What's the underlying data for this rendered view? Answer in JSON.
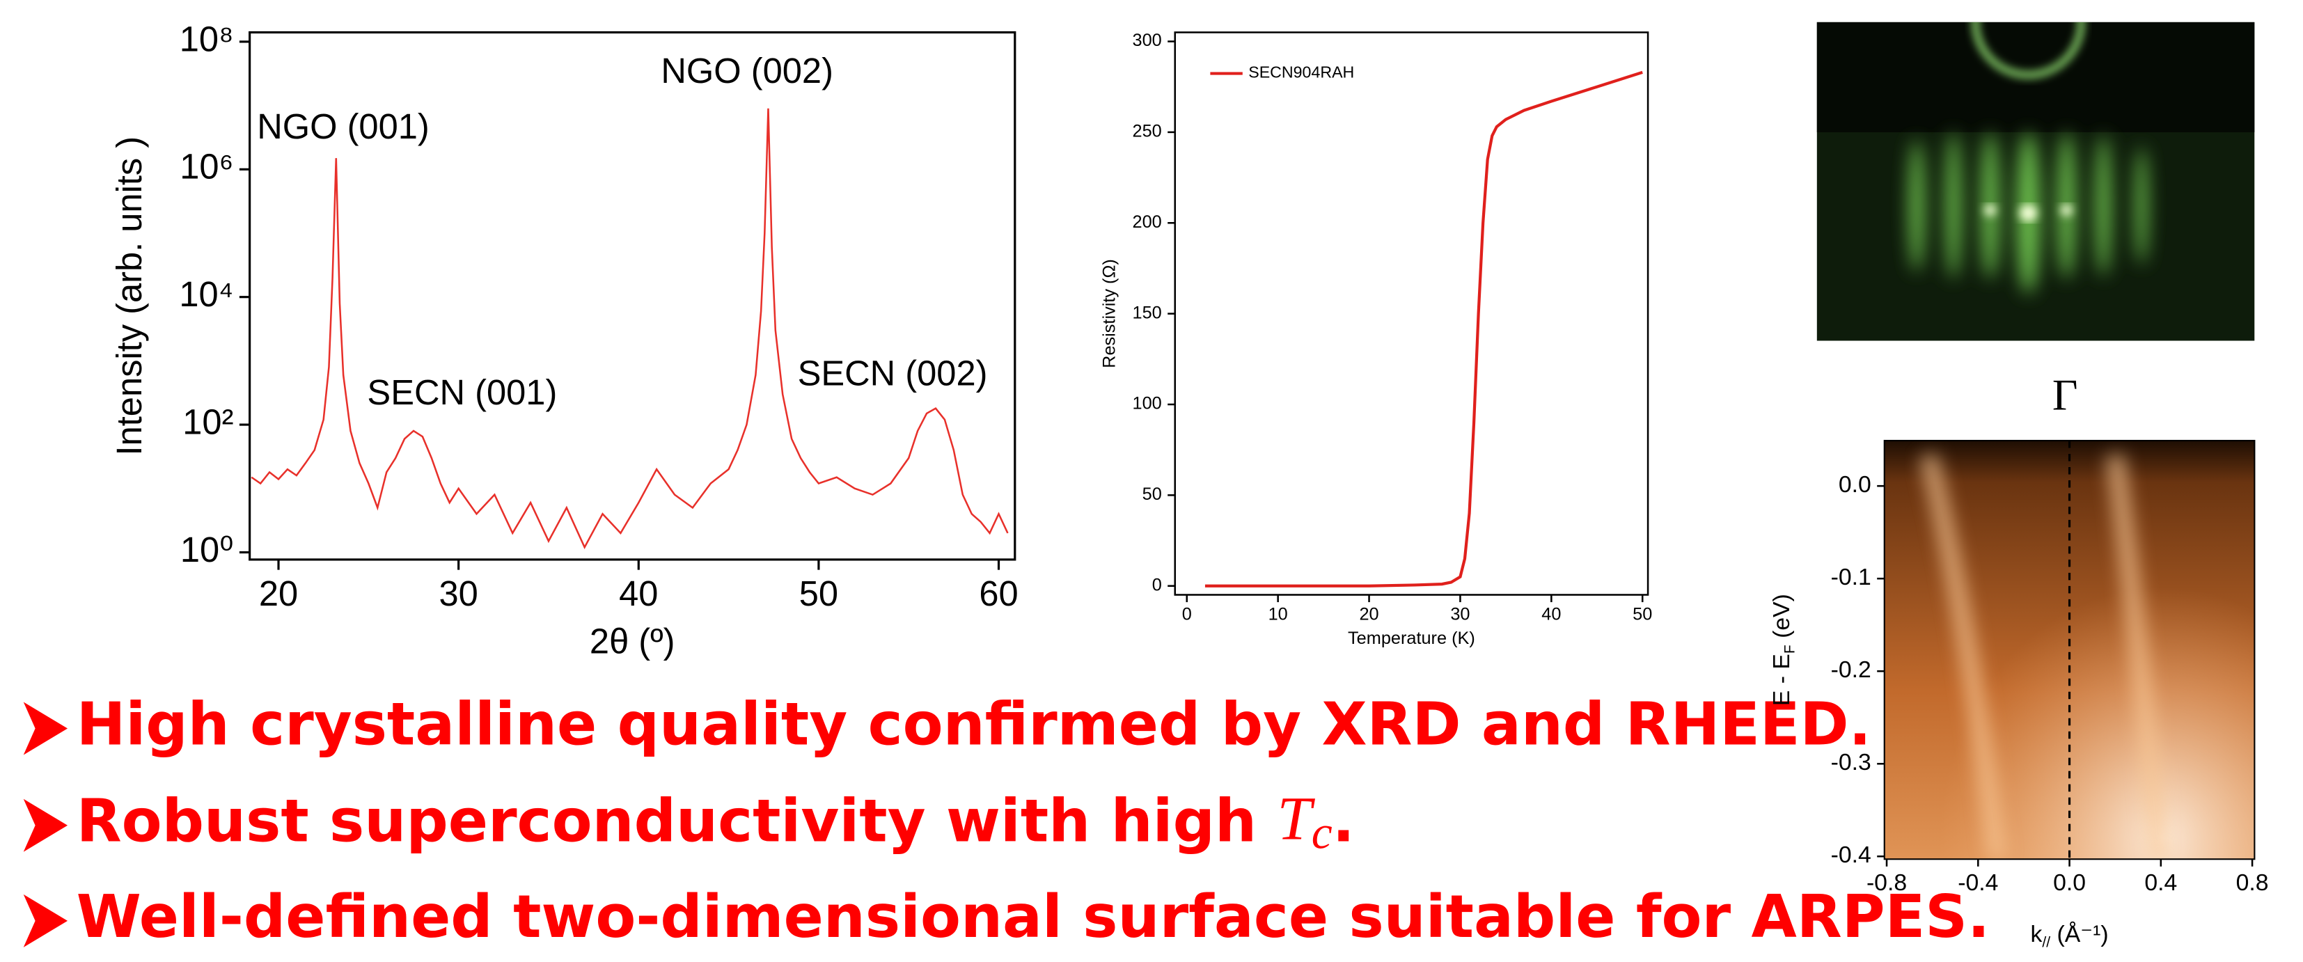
{
  "chart_data": [
    {
      "type": "line",
      "log_y": true,
      "color": "#e8302a",
      "x_label": "2θ (º)",
      "y_label": "Intensity (arb. units )",
      "annotations": [
        "NGO (001)",
        "SECN (001)",
        "NGO (002)",
        "SECN (002)"
      ],
      "x": [
        18.5,
        19,
        19.5,
        20,
        20.5,
        21,
        21.5,
        22,
        22.5,
        22.8,
        23,
        23.2,
        23.4,
        23.6,
        24,
        24.5,
        25,
        25.5,
        26,
        26.5,
        27,
        27.5,
        28,
        28.5,
        29,
        29.5,
        30,
        31,
        32,
        33,
        34,
        35,
        36,
        37,
        38,
        39,
        40,
        41,
        42,
        43,
        44,
        45,
        45.5,
        46,
        46.5,
        46.8,
        47,
        47.2,
        47.4,
        47.6,
        48,
        48.5,
        49,
        49.5,
        50,
        51,
        52,
        53,
        54,
        55,
        55.5,
        56,
        56.5,
        57,
        57.5,
        58,
        58.5,
        59,
        59.5,
        60,
        60.5
      ],
      "values": [
        15,
        12,
        18,
        14,
        20,
        16,
        25,
        40,
        120,
        800,
        20000,
        1500000,
        8000,
        600,
        80,
        25,
        12,
        5,
        18,
        30,
        60,
        80,
        65,
        30,
        12,
        6,
        10,
        4,
        8,
        2,
        6,
        1.5,
        5,
        1.2,
        4,
        2,
        6,
        20,
        8,
        5,
        12,
        20,
        40,
        100,
        600,
        6000,
        100000,
        9000000,
        60000,
        3000,
        300,
        60,
        30,
        18,
        12,
        15,
        10,
        8,
        12,
        30,
        80,
        150,
        180,
        120,
        40,
        8,
        4,
        3,
        2,
        4,
        2
      ],
      "xlim": [
        18.4,
        60.9
      ],
      "xticks": [
        20,
        30,
        40,
        50,
        60
      ],
      "ylim": [
        0.77,
        140000000
      ],
      "yticks": [
        {
          "value": 1,
          "label": "10⁰"
        },
        {
          "value": 100,
          "label": "10²"
        },
        {
          "value": 10000,
          "label": "10⁴"
        },
        {
          "value": 1000000,
          "label": "10⁶"
        },
        {
          "value": 100000000,
          "label": "10⁸"
        }
      ]
    },
    {
      "type": "line",
      "log_y": false,
      "color": "#e0201c",
      "x_label": "Temperature (K)",
      "y_label": "Resistivity (Ω)",
      "legend": "top-left",
      "series_name": "SECN904RAH",
      "x": [
        2,
        10,
        20,
        25,
        28,
        29,
        30,
        30.5,
        31,
        31.5,
        32,
        32.5,
        33,
        33.5,
        34,
        35,
        37,
        40,
        45,
        50
      ],
      "values": [
        0,
        0,
        0,
        0.5,
        1,
        2,
        5,
        15,
        40,
        90,
        150,
        200,
        235,
        248,
        253,
        257,
        262,
        267,
        275,
        283
      ],
      "xlim": [
        -1.3,
        50.6
      ],
      "xticks": [
        0,
        10,
        20,
        30,
        40,
        50
      ],
      "ylim": [
        -4.9,
        305
      ],
      "yticks": [
        0,
        50,
        100,
        150,
        200,
        250,
        300
      ]
    },
    {
      "type": "image",
      "title": "Γ",
      "x_label": "k",
      "x_label_sub": "//",
      "x_label_unit": " (Å⁻¹)",
      "y_label": "E - E",
      "y_label_sub": "F",
      "y_label_unit": " (eV)",
      "xlim": [
        -0.81,
        0.81
      ],
      "xticks": [
        -0.8,
        -0.4,
        {
          "value": 0,
          "label": "0.0"
        },
        0.4,
        0.8
      ],
      "ylim": [
        -0.403,
        0.049
      ],
      "yticks": [
        {
          "value": 0,
          "label": "0.0"
        },
        -0.1,
        -0.2,
        -0.3,
        -0.4
      ]
    }
  ],
  "bullets": [
    {
      "text": "High crystalline quality confirmed by XRD and RHEED."
    },
    {
      "text": "Robust superconductivity with high ",
      "math": "T",
      "math_sub": "c",
      "end": "."
    },
    {
      "text": "Well-defined two-dimensional surface suitable for ARPES."
    }
  ]
}
